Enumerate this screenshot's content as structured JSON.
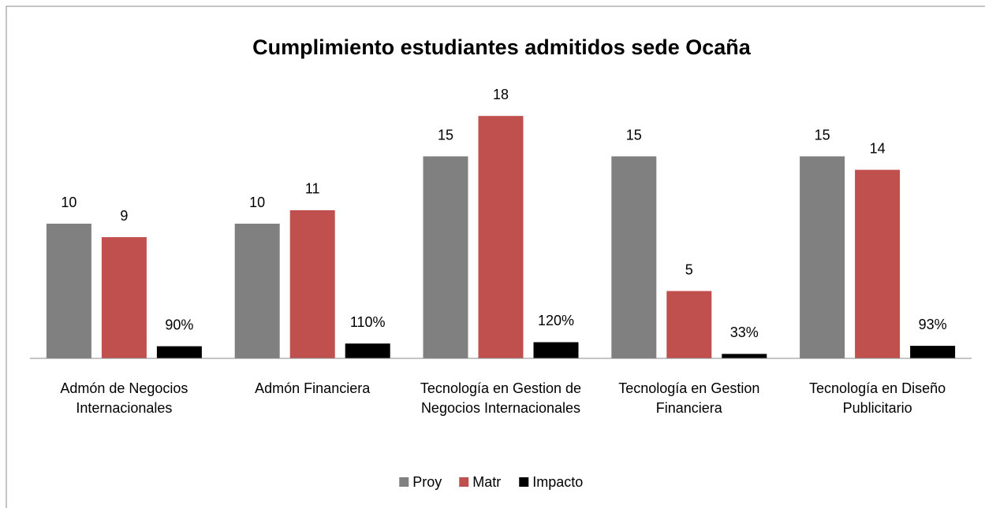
{
  "chart_data": {
    "type": "bar",
    "title": "Cumplimiento estudiantes admitidos sede Ocaña",
    "categories": [
      "Admón de Negocios Internacionales",
      "Admón Financiera",
      "Tecnología en Gestion de Negocios Internacionales",
      "Tecnología en Gestion Financiera",
      "Tecnología en Diseño Publicitario"
    ],
    "series": [
      {
        "name": "Proy",
        "color": "#808080",
        "values": [
          10,
          10,
          15,
          15,
          15
        ]
      },
      {
        "name": "Matr",
        "color": "#c0504d",
        "values": [
          9,
          11,
          18,
          5,
          14
        ]
      },
      {
        "name": "Impacto",
        "color": "#000000",
        "values": [
          0.9,
          1.1,
          1.2,
          0.33,
          0.93
        ],
        "value_labels": [
          "90%",
          "110%",
          "120%",
          "33%",
          "93%"
        ]
      }
    ],
    "ylim": [
      0,
      20
    ],
    "legend": "bottom"
  }
}
